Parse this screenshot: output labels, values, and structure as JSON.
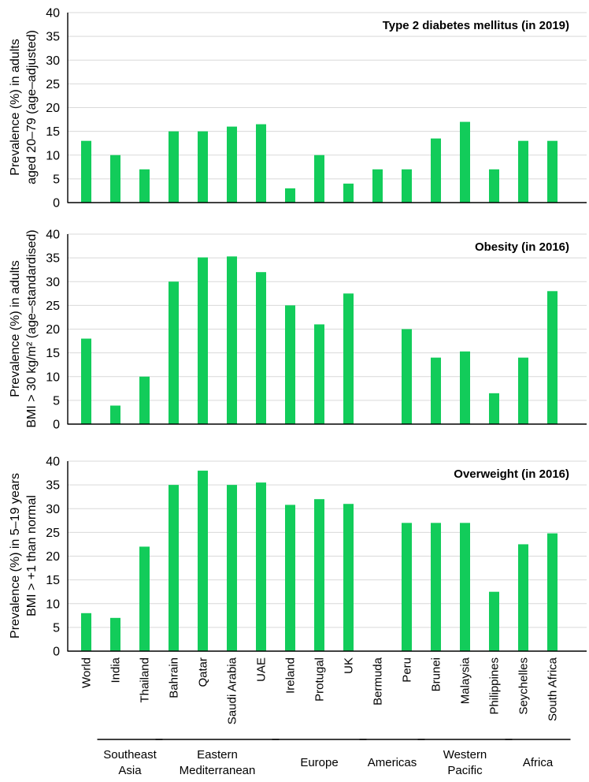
{
  "colors": {
    "bar": "#12cc5a",
    "grid": "#d9d9d9",
    "axis": "#000000"
  },
  "chart_data": [
    {
      "type": "bar",
      "title": "Type 2 diabetes mellitus (in 2019)",
      "ylabel_line1": "Prevalence (%) in adults",
      "ylabel_line2": "aged 20–79 (age–adjusted)",
      "ylim": [
        0,
        40
      ],
      "yticks": [
        0,
        5,
        10,
        15,
        20,
        25,
        30,
        35,
        40
      ],
      "categories": [
        "World",
        "India",
        "Thailand",
        "Bahrain",
        "Qatar",
        "Saudi Arabia",
        "UAE",
        "Ireland",
        "Protugal",
        "UK",
        "Bermuda",
        "Peru",
        "Brunei",
        "Malaysia",
        "Philippines",
        "Seychelles",
        "South Africa"
      ],
      "values": [
        13,
        10,
        7,
        15,
        15,
        16,
        16.5,
        3,
        10,
        4,
        7,
        7,
        13.5,
        17,
        7,
        13,
        13
      ]
    },
    {
      "type": "bar",
      "title": "Obesity (in 2016)",
      "ylabel_line1": "Prevalence (%) in adults",
      "ylabel_line2": "BMI > 30 kg/m² (age–standardised)",
      "ylim": [
        0,
        40
      ],
      "yticks": [
        0,
        5,
        10,
        15,
        20,
        25,
        30,
        35,
        40
      ],
      "categories": [
        "World",
        "India",
        "Thailand",
        "Bahrain",
        "Qatar",
        "Saudi Arabia",
        "UAE",
        "Ireland",
        "Protugal",
        "UK",
        "Bermuda",
        "Peru",
        "Brunei",
        "Malaysia",
        "Philippines",
        "Seychelles",
        "South Africa"
      ],
      "values": [
        18,
        3.9,
        10,
        30,
        35.1,
        35.3,
        32,
        25,
        21,
        27.5,
        null,
        20,
        14,
        15.3,
        6.5,
        14,
        28
      ]
    },
    {
      "type": "bar",
      "title": "Overweight  (in 2016)",
      "ylabel_line1": "Prevalence (%) in 5–19 years",
      "ylabel_line2": "BMI > +1 than normal",
      "ylim": [
        0,
        40
      ],
      "yticks": [
        0,
        5,
        10,
        15,
        20,
        25,
        30,
        35,
        40
      ],
      "categories": [
        "World",
        "India",
        "Thailand",
        "Bahrain",
        "Qatar",
        "Saudi Arabia",
        "UAE",
        "Ireland",
        "Protugal",
        "UK",
        "Bermuda",
        "Peru",
        "Brunei",
        "Malaysia",
        "Philippines",
        "Seychelles",
        "South Africa"
      ],
      "values": [
        8,
        7,
        22,
        35,
        38,
        35,
        35.5,
        30.8,
        32,
        31,
        null,
        27,
        27,
        27,
        12.5,
        22.5,
        24.8
      ]
    }
  ],
  "regions": [
    {
      "line1": "Southeast",
      "line2": "Asia",
      "from": "India",
      "to": "Thailand"
    },
    {
      "line1": "Eastern",
      "line2": "Mediterranean",
      "from": "Bahrain",
      "to": "UAE"
    },
    {
      "line1": "Europe",
      "line2": "",
      "from": "Ireland",
      "to": "UK"
    },
    {
      "line1": "Americas",
      "line2": "",
      "from": "Bermuda",
      "to": "Peru"
    },
    {
      "line1": "Western",
      "line2": "Pacific",
      "from": "Brunei",
      "to": "Philippines"
    },
    {
      "line1": "Africa",
      "line2": "",
      "from": "Seychelles",
      "to": "South Africa"
    }
  ]
}
